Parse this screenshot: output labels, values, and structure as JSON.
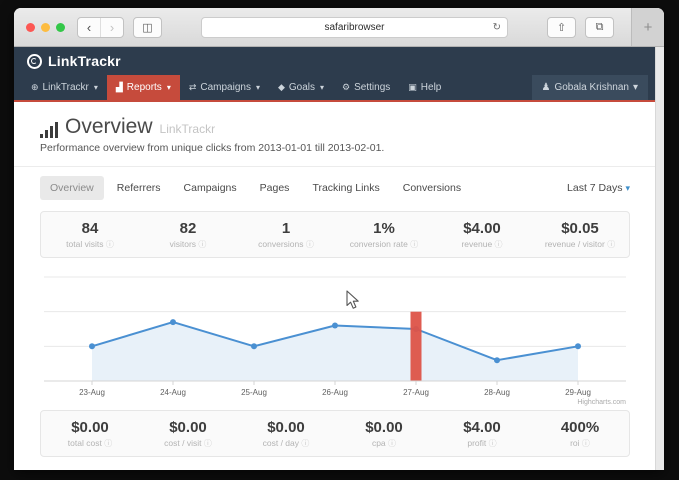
{
  "browser": {
    "address": "safaribrowser"
  },
  "glyphs": {
    "back": "‹",
    "forward": "›",
    "sidebar": "◫",
    "reload": "↻",
    "share": "⇧",
    "tabs": "⧉",
    "newtab": "+",
    "globe": "⊕",
    "bar-chart": "▟",
    "shuffle": "⇄",
    "goal-diamond": "◆",
    "wrench": "⚙",
    "camera": "▣",
    "user": "♟",
    "caret": "▾",
    "info": "ⓘ"
  },
  "app": {
    "brand": "LinkTrackr",
    "nav": [
      {
        "label": "LinkTrackr",
        "icon": "globe",
        "caret": true,
        "active": false
      },
      {
        "label": "Reports",
        "icon": "bar-chart",
        "caret": true,
        "active": true
      },
      {
        "label": "Campaigns",
        "icon": "shuffle",
        "caret": true,
        "active": false
      },
      {
        "label": "Goals",
        "icon": "goal-diamond",
        "caret": true,
        "active": false
      },
      {
        "label": "Settings",
        "icon": "wrench",
        "caret": false,
        "active": false
      },
      {
        "label": "Help",
        "icon": "camera",
        "caret": false,
        "active": false
      }
    ],
    "user": "Gobala Krishnan"
  },
  "page": {
    "title": "Overview",
    "title_suffix": "LinkTrackr",
    "subtitle": "Performance overview from unique clicks from 2013-01-01 till 2013-02-01.",
    "tabs": [
      "Overview",
      "Referrers",
      "Campaigns",
      "Pages",
      "Tracking Links",
      "Conversions"
    ],
    "active_tab": "Overview",
    "date_range": "Last 7 Days"
  },
  "stats_top": [
    {
      "value": "84",
      "label": "total visits"
    },
    {
      "value": "82",
      "label": "visitors"
    },
    {
      "value": "1",
      "label": "conversions"
    },
    {
      "value": "1%",
      "label": "conversion rate"
    },
    {
      "value": "$4.00",
      "label": "revenue"
    },
    {
      "value": "$0.05",
      "label": "revenue / visitor"
    }
  ],
  "stats_bottom": [
    {
      "value": "$0.00",
      "label": "total cost"
    },
    {
      "value": "$0.00",
      "label": "cost / visit"
    },
    {
      "value": "$0.00",
      "label": "cost / day"
    },
    {
      "value": "$0.00",
      "label": "cpa"
    },
    {
      "value": "$4.00",
      "label": "profit"
    },
    {
      "value": "400%",
      "label": "roi"
    }
  ],
  "chart_data": {
    "type": "line",
    "categories": [
      "23-Aug",
      "24-Aug",
      "25-Aug",
      "26-Aug",
      "27-Aug",
      "28-Aug",
      "29-Aug"
    ],
    "series": [
      {
        "name": "visits",
        "type": "area-line",
        "color": "#4a90d2",
        "fill": "#e8f1f9",
        "values": [
          10,
          17,
          10,
          16,
          15,
          6,
          10
        ]
      },
      {
        "name": "conversion-marker",
        "type": "column",
        "color": "#dd5348",
        "values": [
          0,
          0,
          0,
          0,
          20,
          0,
          0
        ]
      }
    ],
    "ylim": [
      0,
      30
    ],
    "gridlines": [
      0,
      10,
      20,
      30
    ],
    "grid": true,
    "legend": false,
    "credit": "Highcharts.com"
  },
  "colors": {
    "navbar": "#2d3c4d",
    "accent_red": "#c64b3c",
    "line_blue": "#4a90d2",
    "bar_red": "#dd5348"
  }
}
